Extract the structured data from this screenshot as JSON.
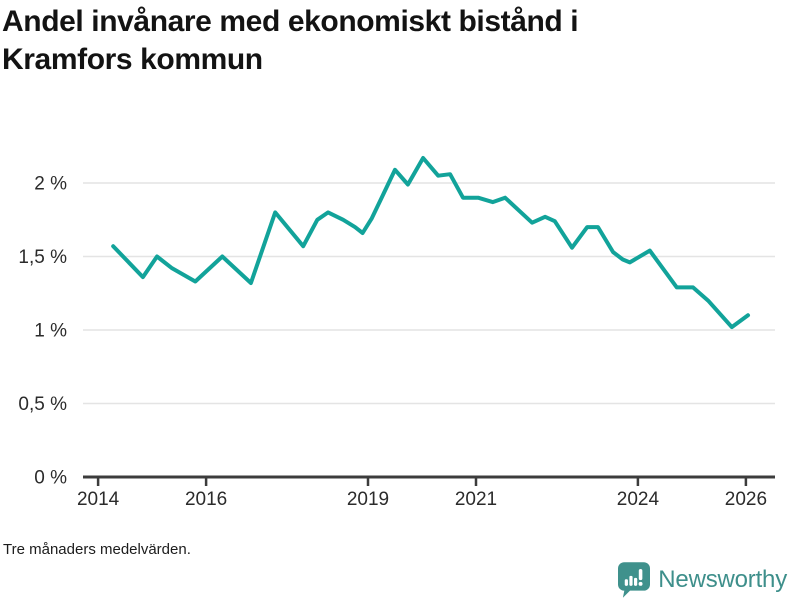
{
  "title": "Andel invånare med ekonomiskt bistånd i Kramfors kommun",
  "footnote": "Tre månaders medelvärden.",
  "branding": {
    "name": "Newsworthy",
    "logo_icon": "bar-chart-speech-bubble-icon",
    "logo_color": "#3f918c"
  },
  "colors": {
    "line": "#12a39a",
    "grid": "#e4e4e4",
    "axis": "#3c3c3c",
    "text": "#2b2b2b",
    "title": "#131313"
  },
  "chart_data": {
    "type": "line",
    "title": "Andel invånare med ekonomiskt bistånd i Kramfors kommun",
    "subtitle": "Tre månaders medelvärden.",
    "unit": "%",
    "xlabel": "",
    "ylabel": "",
    "grid": "horizontal",
    "legend": "none",
    "xlim": [
      2013.72,
      2026.54
    ],
    "ylim": [
      0,
      2.29
    ],
    "x_ticks": [
      2014,
      2016,
      2019,
      2021,
      2024,
      2026
    ],
    "x_tick_labels": [
      "2014",
      "2016",
      "2019",
      "2021",
      "2024",
      "2026"
    ],
    "y_ticks": [
      0,
      0.5,
      1,
      1.5,
      2
    ],
    "y_tick_labels": [
      "0 %",
      "0,5 %",
      "1 %",
      "1,5 %",
      "2 %"
    ],
    "series": [
      {
        "points": [
          [
            2014.28,
            1.57
          ],
          [
            2014.83,
            1.36
          ],
          [
            2015.09,
            1.5
          ],
          [
            2015.37,
            1.42
          ],
          [
            2015.8,
            1.33
          ],
          [
            2016.3,
            1.5
          ],
          [
            2016.83,
            1.32
          ],
          [
            2017.28,
            1.8
          ],
          [
            2017.8,
            1.57
          ],
          [
            2018.06,
            1.75
          ],
          [
            2018.26,
            1.8
          ],
          [
            2018.54,
            1.75
          ],
          [
            2018.76,
            1.7
          ],
          [
            2018.9,
            1.66
          ],
          [
            2019.07,
            1.76
          ],
          [
            2019.5,
            2.09
          ],
          [
            2019.74,
            1.99
          ],
          [
            2020.02,
            2.17
          ],
          [
            2020.3,
            2.05
          ],
          [
            2020.52,
            2.06
          ],
          [
            2020.76,
            1.9
          ],
          [
            2021.04,
            1.9
          ],
          [
            2021.31,
            1.87
          ],
          [
            2021.54,
            1.9
          ],
          [
            2022.04,
            1.73
          ],
          [
            2022.28,
            1.77
          ],
          [
            2022.46,
            1.74
          ],
          [
            2022.78,
            1.56
          ],
          [
            2023.06,
            1.7
          ],
          [
            2023.26,
            1.7
          ],
          [
            2023.54,
            1.53
          ],
          [
            2023.72,
            1.48
          ],
          [
            2023.85,
            1.46
          ],
          [
            2024.22,
            1.54
          ],
          [
            2024.72,
            1.29
          ],
          [
            2025.02,
            1.29
          ],
          [
            2025.3,
            1.2
          ],
          [
            2025.74,
            1.02
          ],
          [
            2026.04,
            1.1
          ]
        ]
      }
    ]
  }
}
